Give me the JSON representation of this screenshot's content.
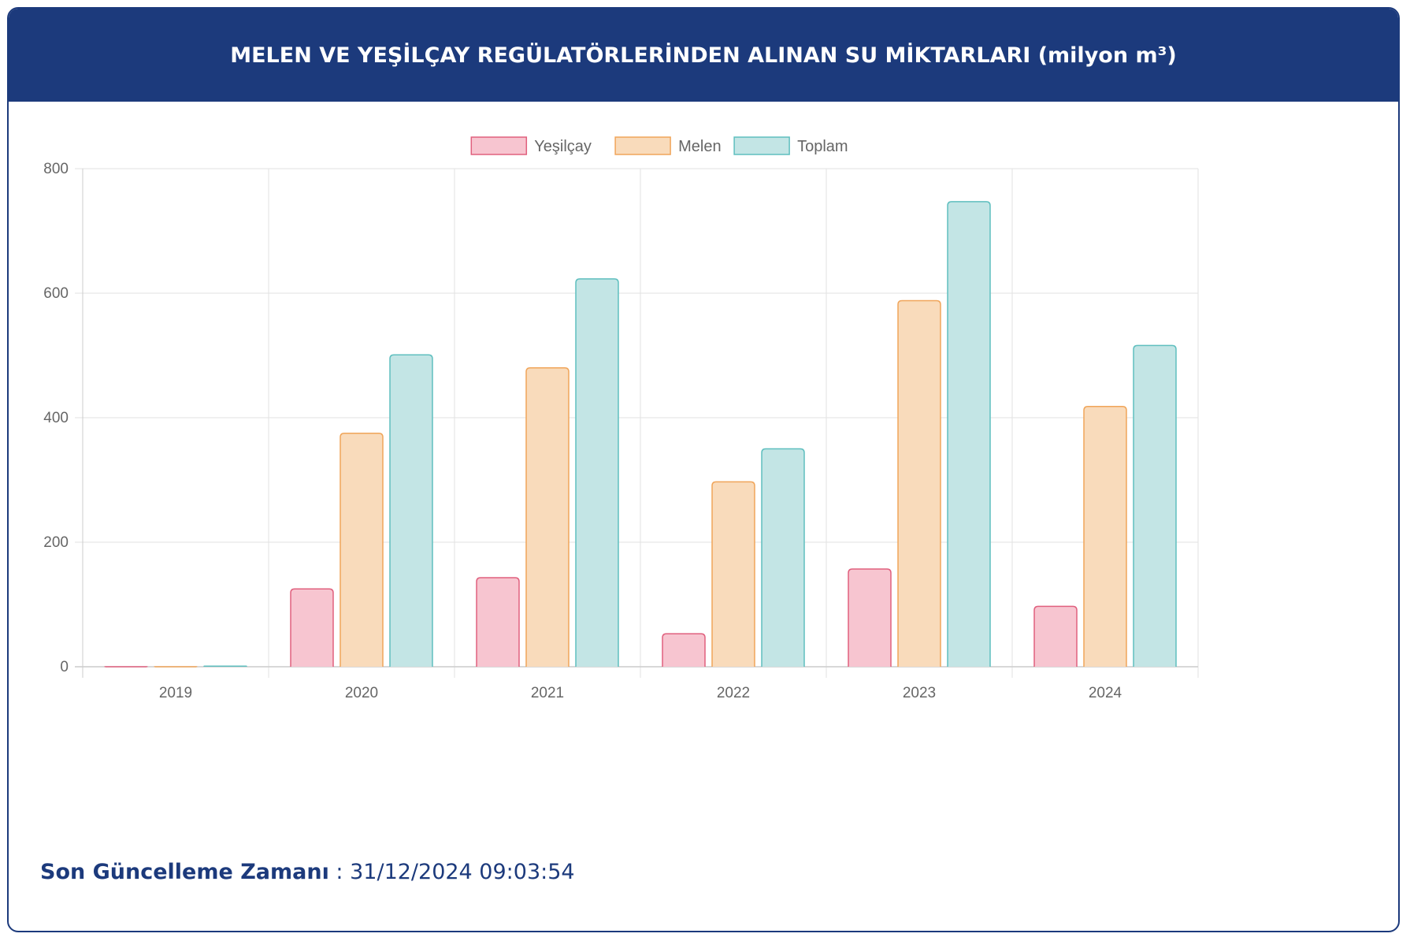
{
  "header": {
    "title": "MELEN VE YEŞİLÇAY REGÜLATÖRLERİNDEN ALINAN SU MİKTARLARI (milyon m³)"
  },
  "chart_data": {
    "type": "bar",
    "categories": [
      "2019",
      "2020",
      "2021",
      "2022",
      "2023",
      "2024"
    ],
    "series": [
      {
        "name": "Yeşilçay",
        "values": [
          0,
          125,
          143,
          53,
          157,
          97
        ],
        "fill": "#f7c5d0",
        "stroke": "#e0607e"
      },
      {
        "name": "Melen",
        "values": [
          0,
          375,
          480,
          297,
          588,
          418
        ],
        "fill": "#f9dbbb",
        "stroke": "#f0a55a"
      },
      {
        "name": "Toplam",
        "values": [
          1,
          501,
          623,
          350,
          747,
          516
        ],
        "fill": "#c3e5e5",
        "stroke": "#5fbfbf"
      }
    ],
    "ylim": [
      0,
      800
    ],
    "yticks": [
      "0",
      "200",
      "400",
      "600",
      "800"
    ],
    "grid": true,
    "legend_position": "top"
  },
  "footer": {
    "label": "Son Güncelleme Zamanı",
    "separator": " : ",
    "timestamp": "31/12/2024 09:03:54"
  }
}
